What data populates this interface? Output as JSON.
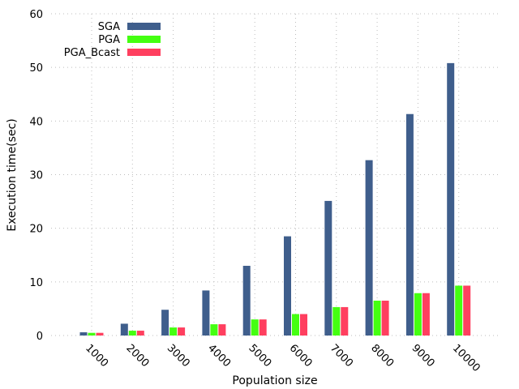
{
  "chart_data": {
    "type": "bar",
    "xlabel": "Population size",
    "ylabel": "Execution time(sec)",
    "categories": [
      "1000",
      "2000",
      "3000",
      "4000",
      "5000",
      "6000",
      "7000",
      "8000",
      "9000",
      "10000"
    ],
    "ylim": [
      0,
      60
    ],
    "yticks": [
      "0",
      "10",
      "20",
      "30",
      "40",
      "50",
      "60"
    ],
    "grid": true,
    "legend_position": "top-left",
    "series": [
      {
        "name": "SGA",
        "color": "#3f5e8c",
        "values": [
          0.6,
          2.2,
          4.8,
          8.4,
          13.0,
          18.5,
          25.1,
          32.7,
          41.3,
          50.8
        ]
      },
      {
        "name": "PGA",
        "color": "#44ff11",
        "values": [
          0.5,
          0.9,
          1.5,
          2.1,
          3.0,
          4.0,
          5.3,
          6.5,
          7.9,
          9.3
        ]
      },
      {
        "name": "PGA_Bcast",
        "color": "#ff3f5f",
        "values": [
          0.5,
          0.9,
          1.5,
          2.1,
          3.0,
          4.0,
          5.3,
          6.5,
          7.9,
          9.3
        ]
      }
    ]
  }
}
